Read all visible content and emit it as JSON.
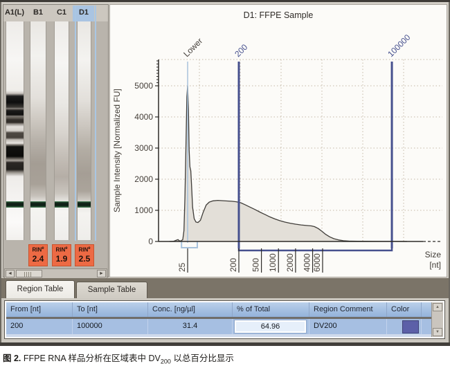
{
  "colors": {
    "region_marker": "#46508e",
    "lower_marker": "#a8c2dc",
    "grid": "#c4b9a6",
    "curve_fill": "#e3dfd8",
    "curve_stroke": "#3f3c38",
    "rin_badge": "#ed6a44",
    "row_selection": "#a6bfe2",
    "table_color_swatch": "#5c60a8"
  },
  "gel": {
    "lanes": [
      {
        "label": "A1(L)"
      },
      {
        "label": "B1",
        "rin_label": "RIN",
        "rin_sup": "e",
        "rin_value": "2.4"
      },
      {
        "label": "C1",
        "rin_label": "RIN",
        "rin_sup": "e",
        "rin_value": "1.9"
      },
      {
        "label": "D1",
        "rin_label": "RIN",
        "rin_sup": "e",
        "rin_value": "2.5"
      }
    ]
  },
  "chart": {
    "title": "D1: FFPE Sample",
    "y_axis_label": "Sample Intensity [Normalized FU]",
    "x_axis_unit_line1": "Size",
    "x_axis_unit_line2": "[nt]"
  },
  "chart_data": {
    "type": "area",
    "title": "D1: FFPE Sample",
    "xlabel": "Size [nt]",
    "ylabel": "Sample Intensity [Normalized FU]",
    "x_scale": "log",
    "xlim": [
      8,
      200000
    ],
    "ylim": [
      0,
      5800
    ],
    "grid": true,
    "y_ticks": [
      0,
      1000,
      2000,
      3000,
      4000,
      5000
    ],
    "x_ticks": [
      25,
      200,
      500,
      1000,
      2000,
      4000,
      6000
    ],
    "markers": [
      {
        "label": "Lower",
        "nt": 25,
        "kind": "lower"
      },
      {
        "label": "200",
        "nt": 200,
        "kind": "region"
      },
      {
        "label": "100000",
        "nt": 100000,
        "kind": "region"
      }
    ],
    "regions": [
      {
        "name": "lower-marker-region",
        "from_nt": 19.5,
        "to_nt": 37,
        "kind": "lower"
      },
      {
        "name": "DV200",
        "from_nt": 200,
        "to_nt": 100000,
        "kind": "region"
      }
    ],
    "points": [
      [
        12,
        0
      ],
      [
        14,
        5
      ],
      [
        16,
        45
      ],
      [
        17,
        60
      ],
      [
        17.6,
        25
      ],
      [
        19,
        15
      ],
      [
        20.5,
        60
      ],
      [
        21.5,
        350
      ],
      [
        22.4,
        1400
      ],
      [
        23.4,
        3200
      ],
      [
        24.2,
        4650
      ],
      [
        25,
        5000
      ],
      [
        25.8,
        4250
      ],
      [
        26.6,
        2950
      ],
      [
        27.4,
        2400
      ],
      [
        28.4,
        2270
      ],
      [
        29.2,
        1850
      ],
      [
        30.6,
        1100
      ],
      [
        32.6,
        730
      ],
      [
        35,
        625
      ],
      [
        38,
        608
      ],
      [
        42,
        680
      ],
      [
        47,
        940
      ],
      [
        53,
        1170
      ],
      [
        60,
        1265
      ],
      [
        70,
        1305
      ],
      [
        85,
        1320
      ],
      [
        100,
        1312
      ],
      [
        125,
        1300
      ],
      [
        150,
        1290
      ],
      [
        180,
        1275
      ],
      [
        215,
        1245
      ],
      [
        255,
        1185
      ],
      [
        305,
        1115
      ],
      [
        380,
        1030
      ],
      [
        470,
        945
      ],
      [
        580,
        865
      ],
      [
        700,
        790
      ],
      [
        860,
        725
      ],
      [
        1050,
        668
      ],
      [
        1300,
        622
      ],
      [
        1600,
        586
      ],
      [
        2000,
        556
      ],
      [
        2500,
        532
      ],
      [
        3100,
        514
      ],
      [
        3800,
        499
      ],
      [
        4300,
        478
      ],
      [
        5000,
        418
      ],
      [
        5800,
        330
      ],
      [
        6800,
        228
      ],
      [
        8000,
        148
      ],
      [
        9500,
        88
      ],
      [
        11500,
        48
      ],
      [
        14000,
        24
      ],
      [
        18000,
        12
      ],
      [
        25000,
        7
      ],
      [
        40000,
        4
      ],
      [
        70000,
        3
      ],
      [
        120000,
        2
      ],
      [
        185000,
        1
      ]
    ]
  },
  "tabs": [
    {
      "label": "Region Table",
      "active": true
    },
    {
      "label": "Sample Table",
      "active": false
    }
  ],
  "region_table": {
    "columns": [
      "From [nt]",
      "To [nt]",
      "Conc. [ng/µl]",
      "% of Total",
      "Region Comment",
      "Color"
    ],
    "rows": [
      {
        "from": "200",
        "to": "100000",
        "conc": "31.4",
        "pct_of_total": "64.96",
        "comment": "DV200",
        "color": "#5c60a8"
      }
    ]
  },
  "caption": {
    "figure_label": "图 2.",
    "before_sub": " FFPE RNA 样品分析在区域表中 DV",
    "sub": "200",
    "after_sub": " 以总百分比显示"
  }
}
